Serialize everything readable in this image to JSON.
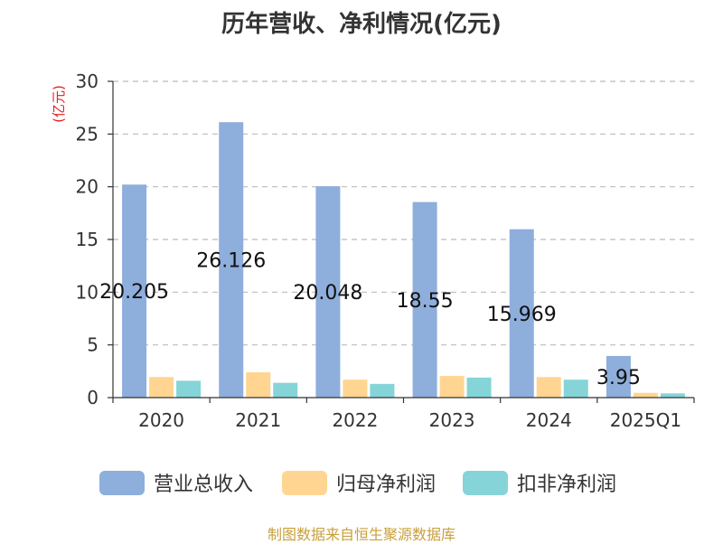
{
  "chart_data": {
    "type": "bar",
    "title": "历年营收、净利情况(亿元)",
    "ylabel": "(亿元)",
    "ylim": [
      0,
      30
    ],
    "yticks": [
      0,
      5,
      10,
      15,
      20,
      25,
      30
    ],
    "categories": [
      "2020",
      "2021",
      "2022",
      "2023",
      "2024",
      "2025Q1"
    ],
    "series": [
      {
        "name": "营业总收入",
        "color": "#8EAEDC",
        "values": [
          20.205,
          26.126,
          20.048,
          18.55,
          15.969,
          3.95
        ]
      },
      {
        "name": "归母净利润",
        "color": "#FFD591",
        "values": [
          1.95,
          2.4,
          1.7,
          2.05,
          1.95,
          0.45
        ]
      },
      {
        "name": "扣非净利润",
        "color": "#85D4D8",
        "values": [
          1.6,
          1.4,
          1.3,
          1.9,
          1.7,
          0.4
        ]
      }
    ],
    "data_labels": [
      "20.205",
      "26.126",
      "20.048",
      "18.55",
      "15.969",
      "3.95"
    ],
    "grid": true,
    "legend_position": "bottom"
  },
  "source_note": {
    "text": "制图数据来自恒生聚源数据库",
    "color": "#C8A03C"
  }
}
